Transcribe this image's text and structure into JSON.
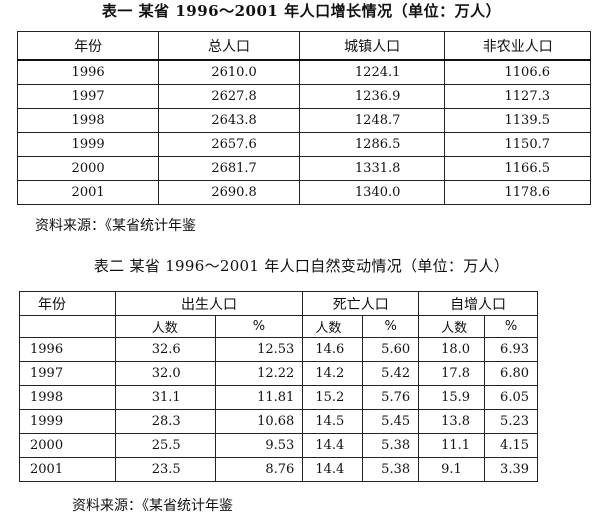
{
  "table1": {
    "title": "表一  某省 1996～2001 年人口增长情况（单位：万人）",
    "headers": [
      "年份",
      "总人口",
      "城镇人口",
      "非农业人口"
    ],
    "rows": [
      [
        "1996",
        "2610.0",
        "1224.1",
        "1106.6"
      ],
      [
        "1997",
        "2627.8",
        "1236.9",
        "1127.3"
      ],
      [
        "1998",
        "2643.8",
        "1248.7",
        "1139.5"
      ],
      [
        "1999",
        "2657.6",
        "1286.5",
        "1150.7"
      ],
      [
        "2000",
        "2681.7",
        "1331.8",
        "1166.5"
      ],
      [
        "2001",
        "2690.8",
        "1340.0",
        "1178.6"
      ]
    ],
    "source": "资料来源：《某省统计年鉴"
  },
  "table2": {
    "title": "表二  某省 1996～2001 年人口自然变动情况（单位：万人）",
    "header_year": "年份",
    "groups": [
      "出生人口",
      "死亡人口",
      "自增人口"
    ],
    "subheaders": [
      "人数",
      "%",
      "人数",
      "%",
      "人数",
      "%"
    ],
    "rows": [
      [
        "1996",
        "32.6",
        "12.53",
        "14.6",
        "5.60",
        "18.0",
        "6.93"
      ],
      [
        "1997",
        "32.0",
        "12.22",
        "14.2",
        "5.42",
        "17.8",
        "6.80"
      ],
      [
        "1998",
        "31.1",
        "11.81",
        "15.2",
        "5.76",
        "15.9",
        "6.05"
      ],
      [
        "1999",
        "28.3",
        "10.68",
        "14.5",
        "5.45",
        "13.8",
        "5.23"
      ],
      [
        "2000",
        "25.5",
        "9.53",
        "14.4",
        "5.38",
        "11.1",
        "4.15"
      ],
      [
        "2001",
        "23.5",
        "8.76",
        "14.4",
        "5.38",
        "9.1",
        "3.39"
      ]
    ],
    "source": "资料来源：《某省统计年鉴"
  }
}
